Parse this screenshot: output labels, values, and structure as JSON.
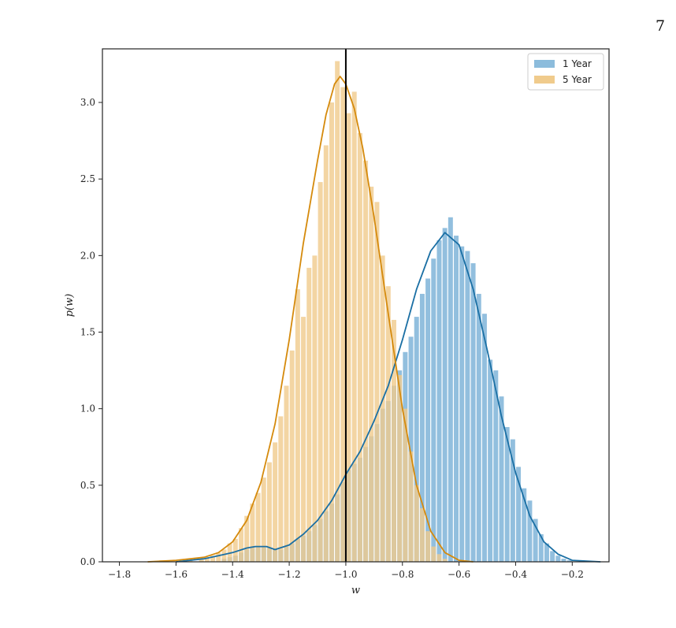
{
  "page": {
    "number": "7"
  },
  "chart_data": {
    "type": "bar",
    "subtype": "histogram-with-kde",
    "xlabel": "w",
    "ylabel": "p(w)",
    "xlim": [
      -1.86,
      -0.07
    ],
    "ylim": [
      0,
      3.35
    ],
    "xticks": [
      -1.8,
      -1.6,
      -1.4,
      -1.2,
      -1.0,
      -0.8,
      -0.6,
      -0.4,
      -0.2
    ],
    "xtick_labels": [
      "−1.8",
      "−1.6",
      "−1.4",
      "−1.2",
      "−1.0",
      "−0.8",
      "−0.6",
      "−0.4",
      "−0.2"
    ],
    "yticks": [
      0.0,
      0.5,
      1.0,
      1.5,
      2.0,
      2.5,
      3.0
    ],
    "ytick_labels": [
      "0.0",
      "0.5",
      "1.0",
      "1.5",
      "2.0",
      "2.5",
      "3.0"
    ],
    "vline": {
      "x": -1.0,
      "color": "#000000"
    },
    "legend": {
      "position": "top-right"
    },
    "grid": false,
    "series": [
      {
        "name": "1 Year",
        "bar_color": "#8cbcdc",
        "kde_color": "#1a6fa4",
        "bin_width": 0.02,
        "bins": [
          [
            -1.43,
            0.02
          ],
          [
            -1.41,
            0.03
          ],
          [
            -1.39,
            0.04
          ],
          [
            -1.37,
            0.06
          ],
          [
            -1.35,
            0.08
          ],
          [
            -1.33,
            0.1
          ],
          [
            -1.31,
            0.1
          ],
          [
            -1.29,
            0.1
          ],
          [
            -1.27,
            0.09
          ],
          [
            -1.25,
            0.08
          ],
          [
            -1.23,
            0.08
          ],
          [
            -1.21,
            0.1
          ],
          [
            -1.19,
            0.12
          ],
          [
            -1.17,
            0.15
          ],
          [
            -1.15,
            0.17
          ],
          [
            -1.13,
            0.2
          ],
          [
            -1.11,
            0.24
          ],
          [
            -1.09,
            0.28
          ],
          [
            -1.07,
            0.33
          ],
          [
            -1.05,
            0.38
          ],
          [
            -1.03,
            0.44
          ],
          [
            -1.01,
            0.52
          ],
          [
            -0.99,
            0.6
          ],
          [
            -0.97,
            0.64
          ],
          [
            -0.95,
            0.68
          ],
          [
            -0.93,
            0.75
          ],
          [
            -0.91,
            0.82
          ],
          [
            -0.89,
            0.9
          ],
          [
            -0.87,
            1.0
          ],
          [
            -0.85,
            1.05
          ],
          [
            -0.83,
            1.15
          ],
          [
            -0.81,
            1.25
          ],
          [
            -0.79,
            1.37
          ],
          [
            -0.77,
            1.47
          ],
          [
            -0.75,
            1.6
          ],
          [
            -0.73,
            1.75
          ],
          [
            -0.71,
            1.85
          ],
          [
            -0.69,
            1.98
          ],
          [
            -0.67,
            2.1
          ],
          [
            -0.65,
            2.18
          ],
          [
            -0.63,
            2.25
          ],
          [
            -0.61,
            2.13
          ],
          [
            -0.59,
            2.06
          ],
          [
            -0.57,
            2.03
          ],
          [
            -0.55,
            1.95
          ],
          [
            -0.53,
            1.75
          ],
          [
            -0.51,
            1.62
          ],
          [
            -0.49,
            1.32
          ],
          [
            -0.47,
            1.25
          ],
          [
            -0.45,
            1.08
          ],
          [
            -0.43,
            0.88
          ],
          [
            -0.41,
            0.8
          ],
          [
            -0.39,
            0.62
          ],
          [
            -0.37,
            0.48
          ],
          [
            -0.35,
            0.4
          ],
          [
            -0.33,
            0.28
          ],
          [
            -0.31,
            0.18
          ],
          [
            -0.29,
            0.12
          ],
          [
            -0.27,
            0.07
          ],
          [
            -0.25,
            0.04
          ],
          [
            -0.23,
            0.02
          ],
          [
            -0.21,
            0.01
          ]
        ],
        "kde": [
          [
            -1.6,
            0.0
          ],
          [
            -1.5,
            0.02
          ],
          [
            -1.45,
            0.04
          ],
          [
            -1.4,
            0.06
          ],
          [
            -1.35,
            0.09
          ],
          [
            -1.32,
            0.1
          ],
          [
            -1.28,
            0.1
          ],
          [
            -1.25,
            0.08
          ],
          [
            -1.2,
            0.11
          ],
          [
            -1.15,
            0.18
          ],
          [
            -1.1,
            0.27
          ],
          [
            -1.05,
            0.4
          ],
          [
            -1.0,
            0.57
          ],
          [
            -0.95,
            0.72
          ],
          [
            -0.9,
            0.92
          ],
          [
            -0.85,
            1.15
          ],
          [
            -0.8,
            1.45
          ],
          [
            -0.75,
            1.78
          ],
          [
            -0.7,
            2.03
          ],
          [
            -0.65,
            2.15
          ],
          [
            -0.6,
            2.07
          ],
          [
            -0.55,
            1.78
          ],
          [
            -0.5,
            1.38
          ],
          [
            -0.45,
            0.95
          ],
          [
            -0.4,
            0.58
          ],
          [
            -0.35,
            0.3
          ],
          [
            -0.3,
            0.13
          ],
          [
            -0.25,
            0.05
          ],
          [
            -0.2,
            0.01
          ],
          [
            -0.1,
            0.0
          ]
        ]
      },
      {
        "name": "5 Year",
        "bar_color": "#f0cb8c",
        "kde_color": "#d58a0c",
        "bin_width": 0.02,
        "bins": [
          [
            -1.65,
            0.01
          ],
          [
            -1.61,
            0.01
          ],
          [
            -1.55,
            0.01
          ],
          [
            -1.51,
            0.02
          ],
          [
            -1.49,
            0.03
          ],
          [
            -1.47,
            0.04
          ],
          [
            -1.45,
            0.06
          ],
          [
            -1.43,
            0.08
          ],
          [
            -1.41,
            0.12
          ],
          [
            -1.39,
            0.15
          ],
          [
            -1.37,
            0.22
          ],
          [
            -1.35,
            0.3
          ],
          [
            -1.33,
            0.38
          ],
          [
            -1.31,
            0.45
          ],
          [
            -1.29,
            0.55
          ],
          [
            -1.27,
            0.65
          ],
          [
            -1.25,
            0.78
          ],
          [
            -1.23,
            0.95
          ],
          [
            -1.21,
            1.15
          ],
          [
            -1.19,
            1.38
          ],
          [
            -1.17,
            1.78
          ],
          [
            -1.15,
            1.6
          ],
          [
            -1.13,
            1.92
          ],
          [
            -1.11,
            2.0
          ],
          [
            -1.09,
            2.48
          ],
          [
            -1.07,
            2.72
          ],
          [
            -1.05,
            3.0
          ],
          [
            -1.03,
            3.27
          ],
          [
            -1.01,
            3.1
          ],
          [
            -0.99,
            2.93
          ],
          [
            -0.97,
            3.07
          ],
          [
            -0.95,
            2.8
          ],
          [
            -0.93,
            2.62
          ],
          [
            -0.91,
            2.45
          ],
          [
            -0.89,
            2.35
          ],
          [
            -0.87,
            2.0
          ],
          [
            -0.85,
            1.8
          ],
          [
            -0.83,
            1.58
          ],
          [
            -0.81,
            1.22
          ],
          [
            -0.79,
            1.0
          ],
          [
            -0.77,
            0.72
          ],
          [
            -0.75,
            0.5
          ],
          [
            -0.73,
            0.35
          ],
          [
            -0.71,
            0.2
          ],
          [
            -0.69,
            0.1
          ],
          [
            -0.67,
            0.05
          ],
          [
            -0.65,
            0.02
          ]
        ],
        "kde": [
          [
            -1.7,
            0.0
          ],
          [
            -1.6,
            0.01
          ],
          [
            -1.5,
            0.03
          ],
          [
            -1.45,
            0.06
          ],
          [
            -1.4,
            0.13
          ],
          [
            -1.35,
            0.27
          ],
          [
            -1.3,
            0.52
          ],
          [
            -1.25,
            0.9
          ],
          [
            -1.2,
            1.45
          ],
          [
            -1.15,
            2.08
          ],
          [
            -1.1,
            2.62
          ],
          [
            -1.07,
            2.92
          ],
          [
            -1.04,
            3.12
          ],
          [
            -1.02,
            3.17
          ],
          [
            -1.0,
            3.12
          ],
          [
            -0.97,
            2.96
          ],
          [
            -0.94,
            2.7
          ],
          [
            -0.9,
            2.25
          ],
          [
            -0.85,
            1.62
          ],
          [
            -0.8,
            1.0
          ],
          [
            -0.75,
            0.5
          ],
          [
            -0.7,
            0.2
          ],
          [
            -0.65,
            0.06
          ],
          [
            -0.6,
            0.01
          ],
          [
            -0.55,
            0.0
          ]
        ]
      }
    ]
  }
}
